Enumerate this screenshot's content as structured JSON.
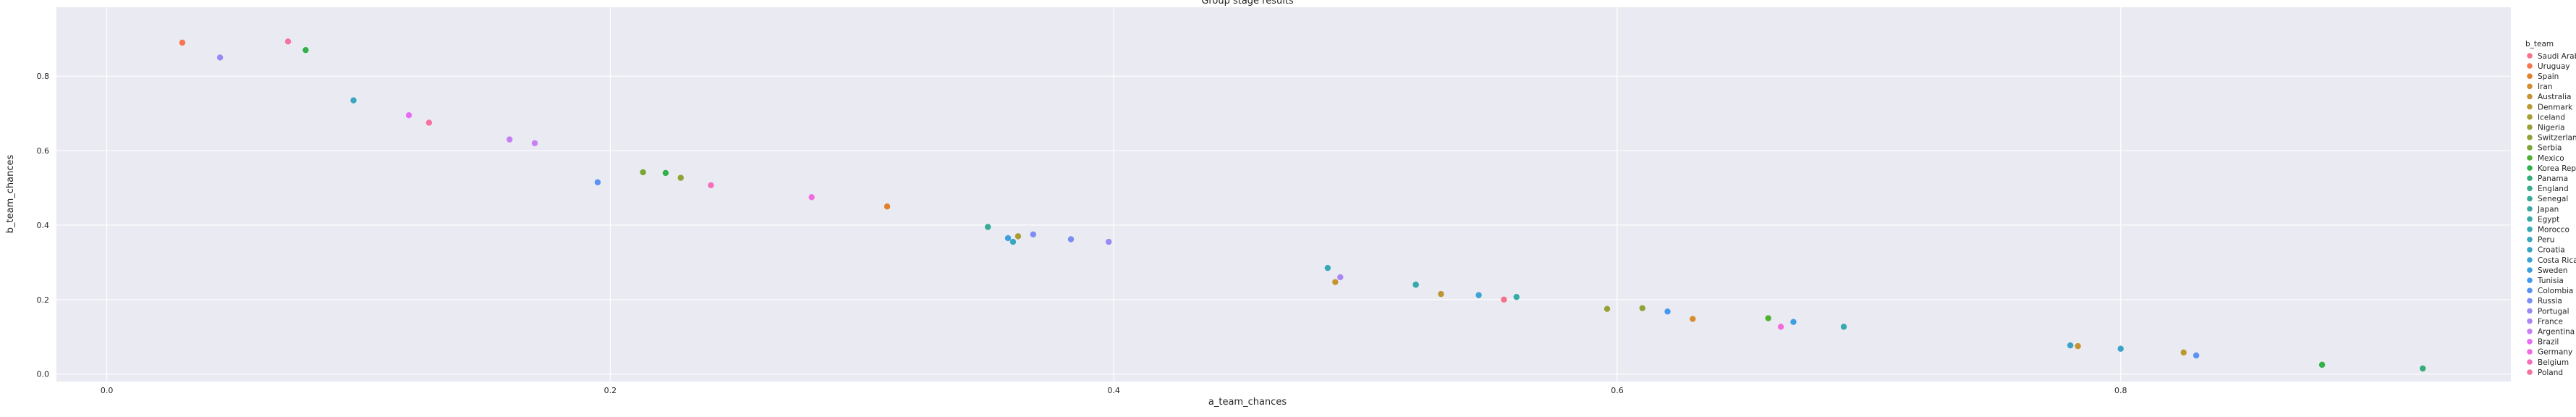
{
  "chart_data": {
    "type": "scatter",
    "title": "Group stage results",
    "xlabel": "a_team_chances",
    "ylabel": "b_team_chances",
    "xlim": [
      -0.02,
      0.955
    ],
    "ylim": [
      -0.02,
      0.985
    ],
    "xticks": [
      "0.0",
      "0.2",
      "0.4",
      "0.6",
      "0.8"
    ],
    "yticks": [
      "0.0",
      "0.2",
      "0.4",
      "0.6",
      "0.8"
    ],
    "grid": true,
    "legend_placement": "right",
    "legend_title": "b_team",
    "series": [
      {
        "name": "Saudi Arabia",
        "color": "#f77189",
        "points": [
          [
            0.555,
            0.2
          ]
        ]
      },
      {
        "name": "Uruguay",
        "color": "#f7754f",
        "points": [
          [
            0.03,
            0.89
          ]
        ]
      },
      {
        "name": "Spain",
        "color": "#e1812c",
        "points": [
          [
            0.31,
            0.45
          ]
        ]
      },
      {
        "name": "Iran",
        "color": "#d58d31",
        "points": [
          [
            0.63,
            0.148
          ]
        ]
      },
      {
        "name": "Australia",
        "color": "#c69531",
        "points": [
          [
            0.488,
            0.247
          ],
          [
            0.783,
            0.075
          ]
        ]
      },
      {
        "name": "Denmark",
        "color": "#bb9832",
        "points": [
          [
            0.53,
            0.215
          ],
          [
            0.825,
            0.058
          ]
        ]
      },
      {
        "name": "Iceland",
        "color": "#a79d32",
        "points": [
          [
            0.362,
            0.37
          ]
        ]
      },
      {
        "name": "Nigeria",
        "color": "#99a033",
        "points": [
          [
            0.596,
            0.175
          ]
        ]
      },
      {
        "name": "Switzerland",
        "color": "#8ea333",
        "points": [
          [
            0.61,
            0.177
          ],
          [
            0.228,
            0.527
          ]
        ]
      },
      {
        "name": "Serbia",
        "color": "#7aa733",
        "points": [
          [
            0.213,
            0.542
          ]
        ]
      },
      {
        "name": "Mexico",
        "color": "#50b131",
        "points": [
          [
            0.66,
            0.15
          ]
        ]
      },
      {
        "name": "Korea Republic",
        "color": "#33b047",
        "points": [
          [
            0.079,
            0.87
          ],
          [
            0.222,
            0.54
          ],
          [
            0.88,
            0.025
          ]
        ]
      },
      {
        "name": "Panama",
        "color": "#34ae77",
        "points": [
          [
            0.92,
            0.015
          ]
        ]
      },
      {
        "name": "England",
        "color": "#35ad8c",
        "points": [
          [
            0.52,
            0.24
          ]
        ]
      },
      {
        "name": "Senegal",
        "color": "#35ab98",
        "points": [
          [
            0.35,
            0.395
          ]
        ]
      },
      {
        "name": "Japan",
        "color": "#36aaa3",
        "points": [
          [
            0.56,
            0.207
          ]
        ]
      },
      {
        "name": "Egypt",
        "color": "#36a9ac",
        "points": [
          [
            0.52,
            0.24
          ],
          [
            0.69,
            0.127
          ]
        ]
      },
      {
        "name": "Morocco",
        "color": "#37a8b5",
        "points": [
          [
            0.485,
            0.285
          ]
        ]
      },
      {
        "name": "Peru",
        "color": "#38a6bf",
        "points": [
          [
            0.098,
            0.735
          ],
          [
            0.36,
            0.355
          ]
        ]
      },
      {
        "name": "Croatia",
        "color": "#39a4ca",
        "points": [
          [
            0.8,
            0.068
          ],
          [
            0.78,
            0.077
          ]
        ]
      },
      {
        "name": "Costa Rica",
        "color": "#3ba3d6",
        "points": [
          [
            0.545,
            0.212
          ]
        ]
      },
      {
        "name": "Sweden",
        "color": "#3d9fe0",
        "points": [
          [
            0.358,
            0.365
          ],
          [
            0.67,
            0.14
          ]
        ]
      },
      {
        "name": "Tunisia",
        "color": "#4599f0",
        "points": [
          [
            0.62,
            0.168
          ]
        ]
      },
      {
        "name": "Colombia",
        "color": "#5a93f4",
        "points": [
          [
            0.83,
            0.05
          ],
          [
            0.195,
            0.515
          ]
        ]
      },
      {
        "name": "Russia",
        "color": "#7c8df4",
        "points": [
          [
            0.383,
            0.362
          ],
          [
            0.368,
            0.375
          ]
        ]
      },
      {
        "name": "Portugal",
        "color": "#9a89f4",
        "points": [
          [
            0.045,
            0.85
          ],
          [
            0.398,
            0.355
          ]
        ]
      },
      {
        "name": "France",
        "color": "#ac86f4",
        "points": [
          [
            0.49,
            0.26
          ]
        ]
      },
      {
        "name": "Argentina",
        "color": "#c97ff4",
        "points": [
          [
            0.16,
            0.63
          ],
          [
            0.17,
            0.62
          ]
        ]
      },
      {
        "name": "Brazil",
        "color": "#e56ef4",
        "points": [
          [
            0.12,
            0.695
          ]
        ]
      },
      {
        "name": "Germany",
        "color": "#f26bdc",
        "points": [
          [
            0.665,
            0.127
          ],
          [
            0.28,
            0.475
          ]
        ]
      },
      {
        "name": "Belgium",
        "color": "#f470bd",
        "points": [
          [
            0.24,
            0.507
          ]
        ]
      },
      {
        "name": "Poland",
        "color": "#f6739f",
        "points": [
          [
            0.072,
            0.893
          ],
          [
            0.128,
            0.675
          ]
        ]
      }
    ]
  }
}
